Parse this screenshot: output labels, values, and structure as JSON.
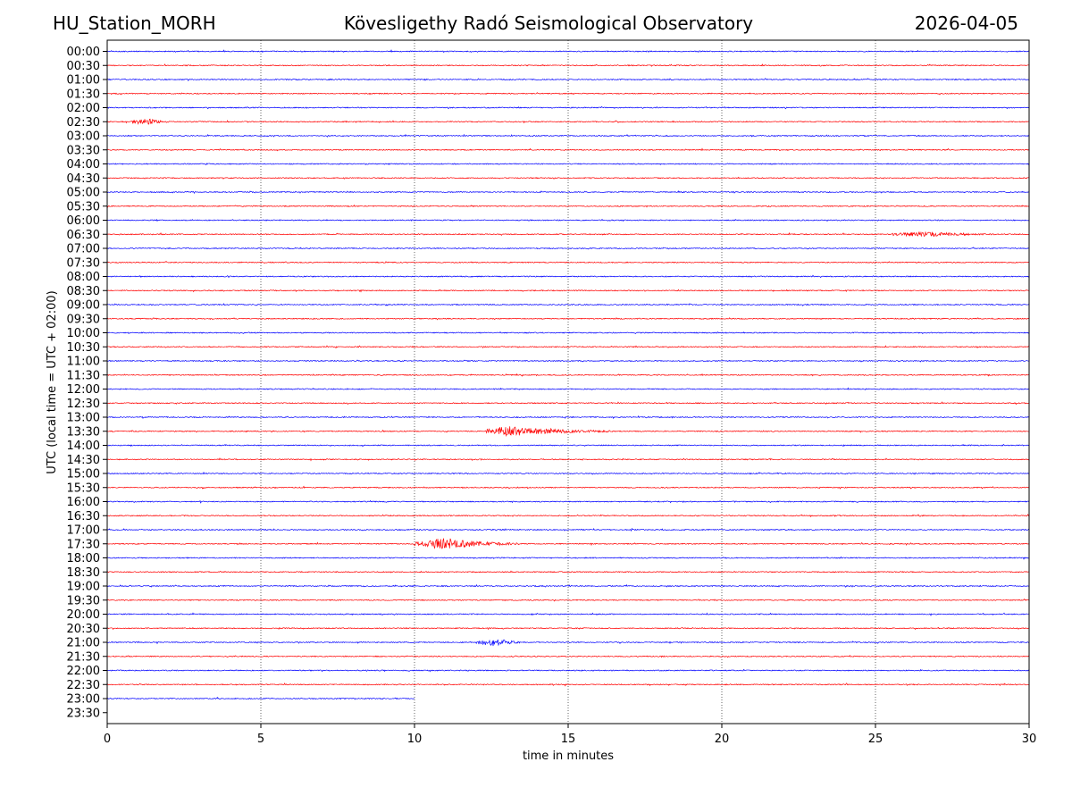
{
  "header": {
    "station": "HU_Station_MORH",
    "title": "Kövesligethy Radó Seismological Observatory",
    "date": "2026-04-05"
  },
  "chart_data": {
    "type": "line",
    "title": "Kövesligethy Radó Seismological Observatory",
    "xlabel": "time in minutes",
    "ylabel": "UTC (local time = UTC + 02:00)",
    "xlim": [
      0,
      30
    ],
    "x_ticks": [
      0,
      5,
      10,
      15,
      20,
      25,
      30
    ],
    "vertical_gridlines": [
      5,
      10,
      15,
      20,
      25
    ],
    "grid_style": "dotted",
    "row_labels": [
      "00:00",
      "00:30",
      "01:00",
      "01:30",
      "02:00",
      "02:30",
      "03:00",
      "03:30",
      "04:00",
      "04:30",
      "05:00",
      "05:30",
      "06:00",
      "06:30",
      "07:00",
      "07:30",
      "08:00",
      "08:30",
      "09:00",
      "09:30",
      "10:00",
      "10:30",
      "11:00",
      "11:30",
      "12:00",
      "12:30",
      "13:00",
      "13:30",
      "14:00",
      "14:30",
      "15:00",
      "15:30",
      "16:00",
      "16:30",
      "17:00",
      "17:30",
      "18:00",
      "18:30",
      "19:00",
      "19:30",
      "20:00",
      "20:30",
      "21:00",
      "21:30",
      "22:00",
      "22:30",
      "23:00",
      "23:30"
    ],
    "trace_colors": [
      "#0000ff",
      "#ff0000"
    ],
    "trace_end_minutes": {
      "23:00": 10,
      "23:30": 0
    },
    "events": [
      {
        "row": "02:30",
        "start": 0.8,
        "end": 2.0,
        "peak": 1.3,
        "amplitude": 3.5
      },
      {
        "row": "06:30",
        "start": 25.5,
        "end": 29.0,
        "peak": 26.8,
        "amplitude": 2.5
      },
      {
        "row": "13:30",
        "start": 12.3,
        "end": 16.5,
        "peak": 13.0,
        "amplitude": 5.5
      },
      {
        "row": "17:30",
        "start": 10.0,
        "end": 13.5,
        "peak": 11.1,
        "amplitude": 6.0
      },
      {
        "row": "21:00",
        "start": 12.0,
        "end": 13.5,
        "peak": 12.7,
        "amplitude": 4.5
      }
    ]
  }
}
